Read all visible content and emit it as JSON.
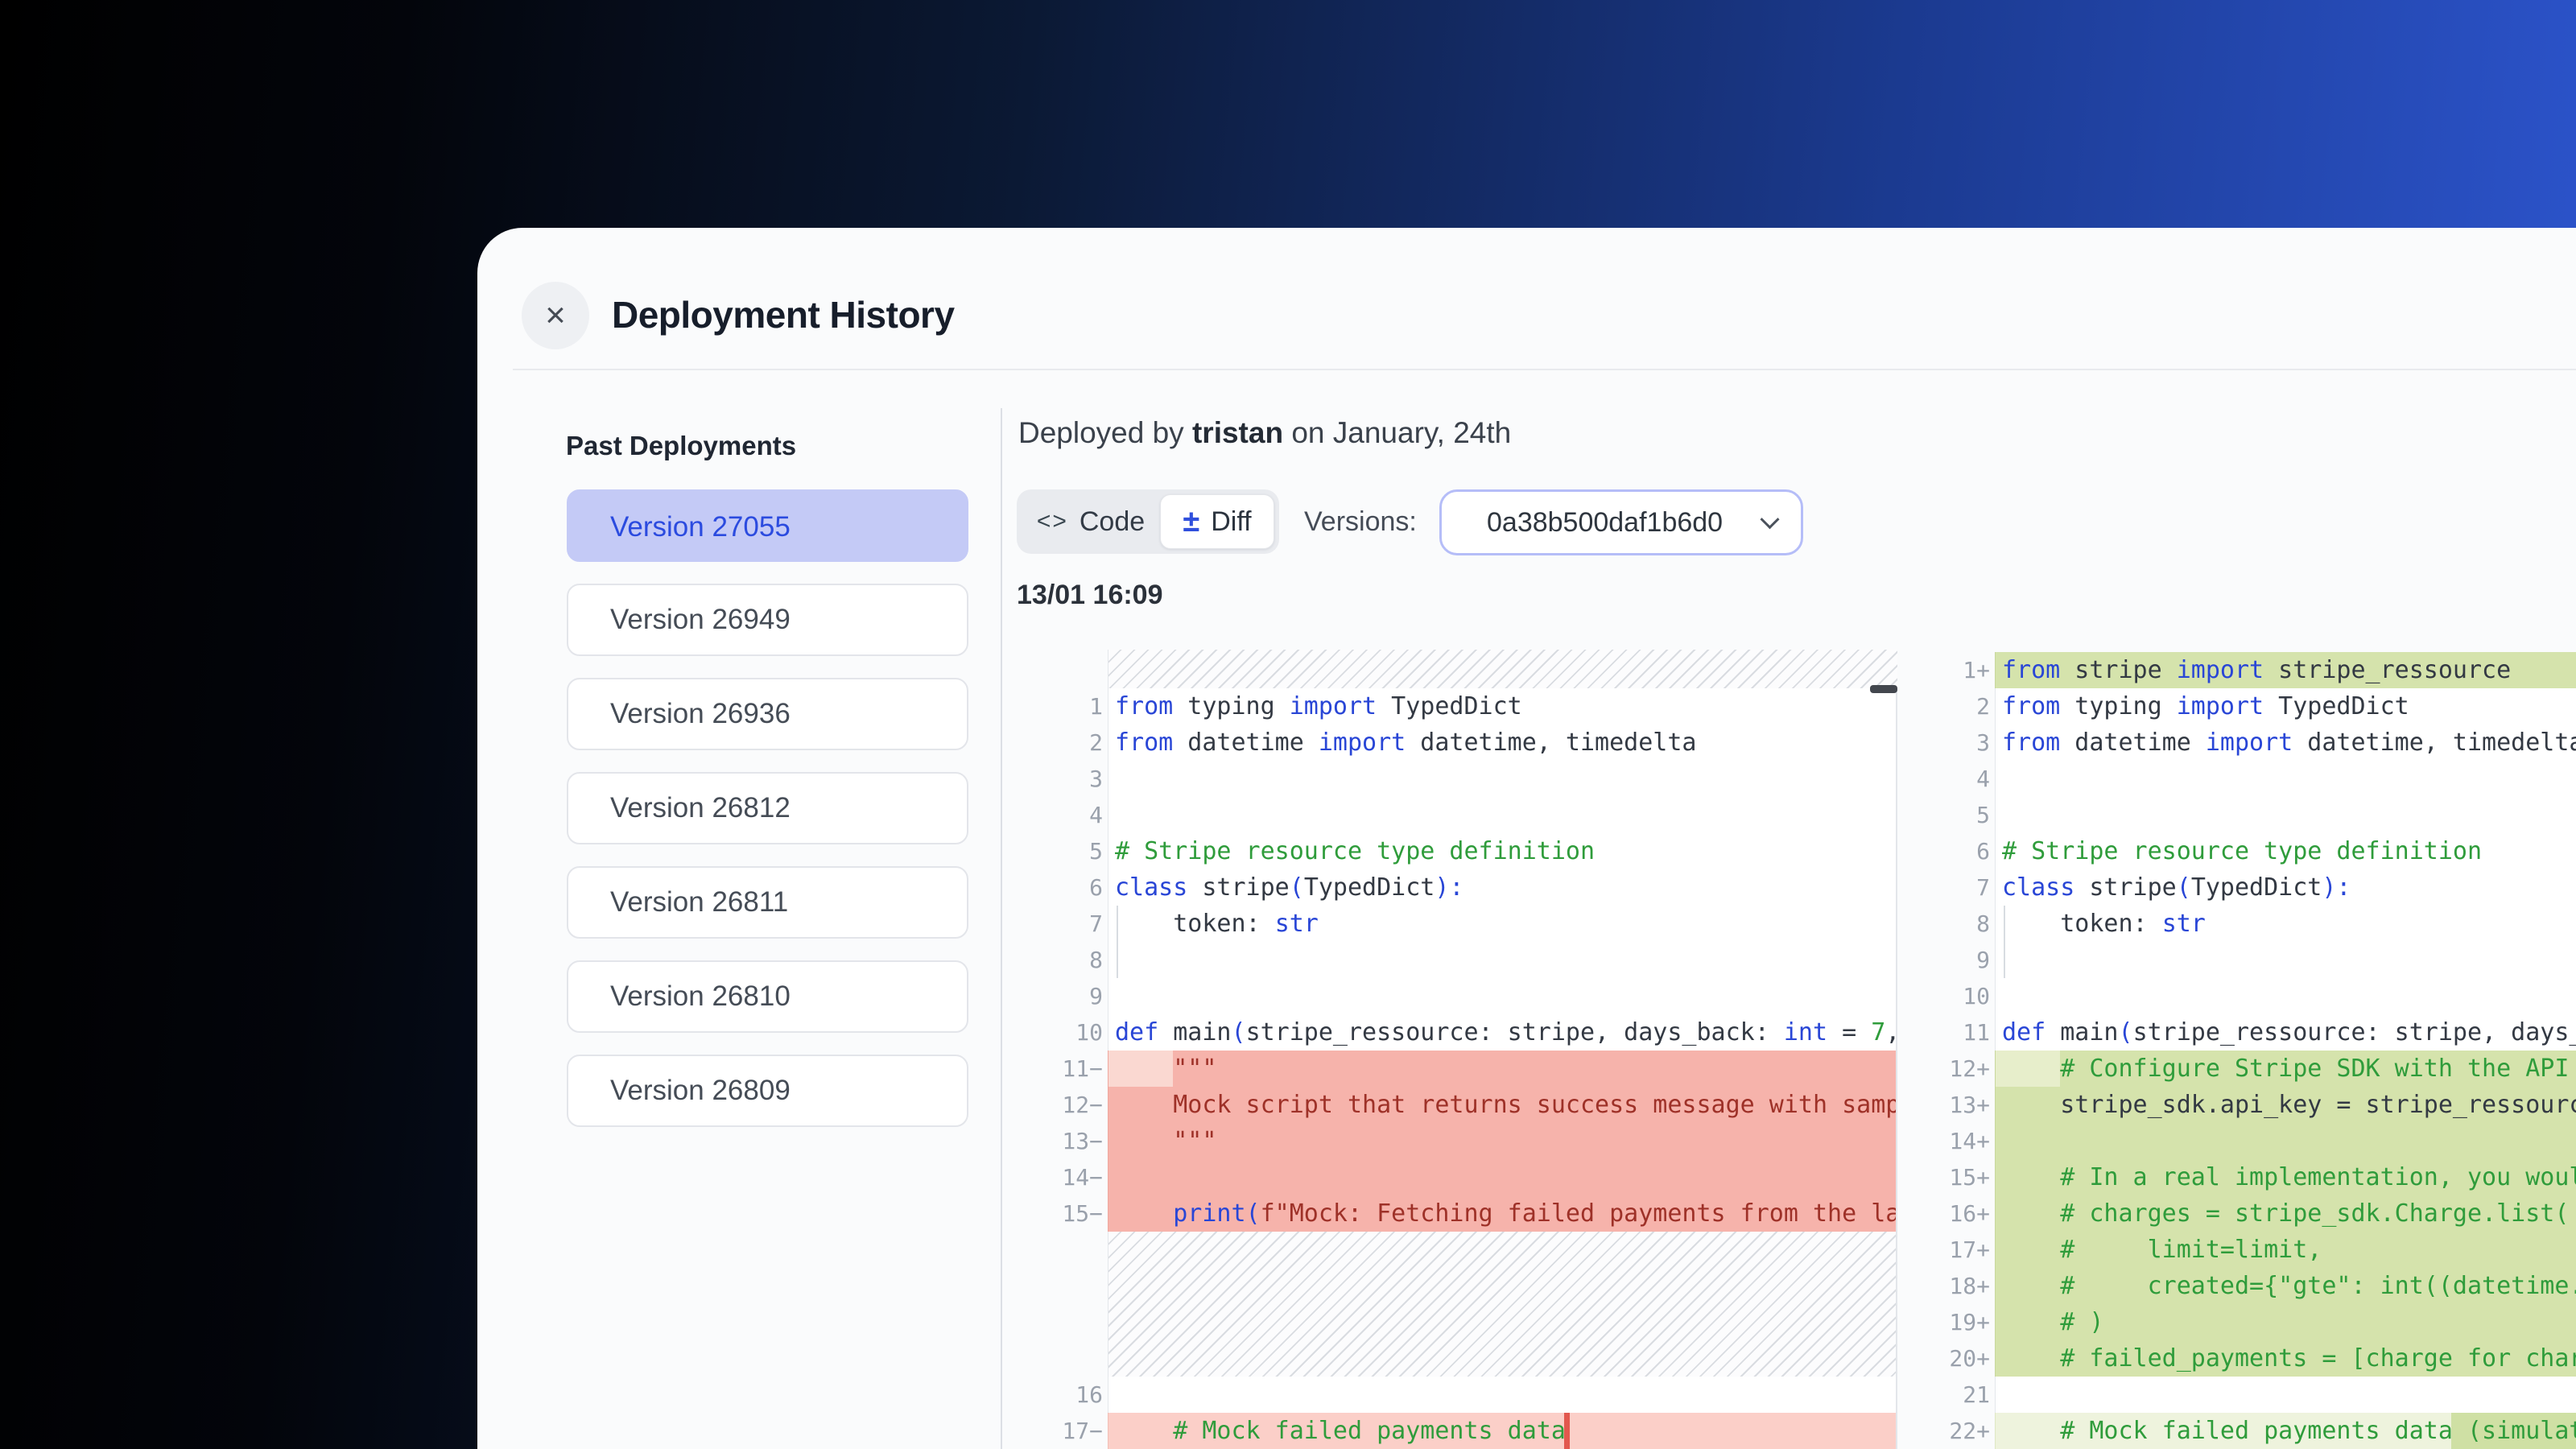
{
  "header": {
    "title": "Deployment History",
    "close_label": "×"
  },
  "sidebar": {
    "title": "Past Deployments",
    "items": [
      {
        "label": "Version 27055",
        "selected": true
      },
      {
        "label": "Version 26949",
        "selected": false
      },
      {
        "label": "Version 26936",
        "selected": false
      },
      {
        "label": "Version 26812",
        "selected": false
      },
      {
        "label": "Version 26811",
        "selected": false
      },
      {
        "label": "Version 26810",
        "selected": false
      },
      {
        "label": "Version 26809",
        "selected": false
      }
    ]
  },
  "main": {
    "deployed": {
      "prefix": "Deployed by ",
      "user": "tristan",
      "suffix": " on January, 24th"
    },
    "toolbar": {
      "code_icon": "<>",
      "code_label": "Code",
      "diff_icon": "±",
      "diff_label": "Diff",
      "versions_label": "Versions:",
      "version_value": "0a38b500daf1b6d0"
    },
    "timestamp": "13/01 16:09"
  },
  "diff": {
    "left_rows": [
      {
        "type": "hatch",
        "h": 48
      },
      {
        "ln": "1",
        "type": "ctx",
        "segs": [
          [
            "k",
            "from"
          ],
          [
            "p",
            " typing "
          ],
          [
            "k",
            "import"
          ],
          [
            "p",
            " TypedDict"
          ]
        ]
      },
      {
        "ln": "2",
        "type": "ctx",
        "segs": [
          [
            "k",
            "from"
          ],
          [
            "p",
            " datetime "
          ],
          [
            "k",
            "import"
          ],
          [
            "p",
            " datetime, timedelta"
          ]
        ]
      },
      {
        "ln": "3",
        "type": "ctx",
        "segs": []
      },
      {
        "ln": "4",
        "type": "ctx",
        "segs": []
      },
      {
        "ln": "5",
        "type": "ctx",
        "segs": [
          [
            "c",
            "# Stripe resource type definition"
          ]
        ]
      },
      {
        "ln": "6",
        "type": "ctx",
        "segs": [
          [
            "k",
            "class"
          ],
          [
            "p",
            " stripe"
          ],
          [
            "k",
            "("
          ],
          [
            "p",
            "TypedDict"
          ],
          [
            "k",
            "):"
          ]
        ]
      },
      {
        "ln": "7",
        "type": "ctx",
        "guide": true,
        "segs": [
          [
            "p",
            "    token: "
          ],
          [
            "k",
            "str"
          ]
        ]
      },
      {
        "ln": "8",
        "type": "ctx",
        "guide": true,
        "segs": []
      },
      {
        "ln": "9",
        "type": "ctx",
        "segs": []
      },
      {
        "ln": "10",
        "type": "ctx",
        "segs": [
          [
            "k",
            "def"
          ],
          [
            "p",
            " main"
          ],
          [
            "k",
            "("
          ],
          [
            "p",
            "stripe_ressource: stripe, days_back: "
          ],
          [
            "k",
            "int"
          ],
          [
            "p",
            " = "
          ],
          [
            "n",
            "7"
          ],
          [
            "p",
            ","
          ]
        ]
      },
      {
        "ln": "11−",
        "type": "del",
        "lite": 80,
        "segs": [
          [
            "s",
            "    \"\"\""
          ]
        ]
      },
      {
        "ln": "12−",
        "type": "del",
        "segs": [
          [
            "s",
            "    Mock script that returns success message with samp"
          ]
        ]
      },
      {
        "ln": "13−",
        "type": "del",
        "segs": [
          [
            "s",
            "    \"\"\""
          ]
        ]
      },
      {
        "ln": "14−",
        "type": "del",
        "segs": []
      },
      {
        "ln": "15−",
        "type": "del",
        "segs": [
          [
            "p",
            "    "
          ],
          [
            "k",
            "print("
          ],
          [
            "s",
            "f\"Mock: Fetching failed payments from the la"
          ]
        ]
      },
      {
        "type": "hatch",
        "h": 180
      },
      {
        "ln": "16",
        "type": "ctx",
        "segs": []
      },
      {
        "ln": "17−",
        "type": "del-lite",
        "bar": 566,
        "segs": [
          [
            "p",
            "    "
          ],
          [
            "c",
            "# Mock failed payments data"
          ]
        ]
      }
    ],
    "right_rows": [
      {
        "ln": "1+",
        "type": "add",
        "segs": [
          [
            "k",
            "from"
          ],
          [
            "p",
            " stripe "
          ],
          [
            "k",
            "import"
          ],
          [
            "p",
            " stripe_ressource"
          ]
        ]
      },
      {
        "ln": "2",
        "type": "ctx",
        "segs": [
          [
            "k",
            "from"
          ],
          [
            "p",
            " typing "
          ],
          [
            "k",
            "import"
          ],
          [
            "p",
            " TypedDict"
          ]
        ]
      },
      {
        "ln": "3",
        "type": "ctx",
        "segs": [
          [
            "k",
            "from"
          ],
          [
            "p",
            " datetime "
          ],
          [
            "k",
            "import"
          ],
          [
            "p",
            " datetime, timedelta"
          ]
        ]
      },
      {
        "ln": "4",
        "type": "ctx",
        "segs": []
      },
      {
        "ln": "5",
        "type": "ctx",
        "segs": []
      },
      {
        "ln": "6",
        "type": "ctx",
        "segs": [
          [
            "c",
            "# Stripe resource type definition"
          ]
        ]
      },
      {
        "ln": "7",
        "type": "ctx",
        "segs": [
          [
            "k",
            "class"
          ],
          [
            "p",
            " stripe"
          ],
          [
            "k",
            "("
          ],
          [
            "p",
            "TypedDict"
          ],
          [
            "k",
            "):"
          ]
        ]
      },
      {
        "ln": "8",
        "type": "ctx",
        "guide": true,
        "segs": [
          [
            "p",
            "    token: "
          ],
          [
            "k",
            "str"
          ]
        ]
      },
      {
        "ln": "9",
        "type": "ctx",
        "guide": true,
        "segs": []
      },
      {
        "ln": "10",
        "type": "ctx",
        "segs": []
      },
      {
        "ln": "11",
        "type": "ctx",
        "segs": [
          [
            "k",
            "def"
          ],
          [
            "p",
            " main"
          ],
          [
            "k",
            "("
          ],
          [
            "p",
            "stripe_ressource: stripe, days_"
          ]
        ]
      },
      {
        "ln": "12+",
        "type": "add",
        "lite": 80,
        "segs": [
          [
            "c",
            "    # Configure Stripe SDK with the API"
          ]
        ]
      },
      {
        "ln": "13+",
        "type": "add",
        "segs": [
          [
            "p",
            "    stripe_sdk.api_key = stripe_ressourc"
          ]
        ]
      },
      {
        "ln": "14+",
        "type": "add",
        "segs": []
      },
      {
        "ln": "15+",
        "type": "add",
        "segs": [
          [
            "c",
            "    # In a real implementation, you woul"
          ]
        ]
      },
      {
        "ln": "16+",
        "type": "add",
        "segs": [
          [
            "c",
            "    # charges = stripe_sdk.Charge.list("
          ]
        ]
      },
      {
        "ln": "17+",
        "type": "add",
        "segs": [
          [
            "c",
            "    #     limit=limit,"
          ]
        ]
      },
      {
        "ln": "18+",
        "type": "add",
        "segs": [
          [
            "c",
            "    #     created={\"gte\": int((datetime."
          ]
        ]
      },
      {
        "ln": "19+",
        "type": "add",
        "segs": [
          [
            "c",
            "    # )"
          ]
        ]
      },
      {
        "ln": "20+",
        "type": "add",
        "segs": [
          [
            "c",
            "    # failed_payments = [charge for char"
          ]
        ]
      },
      {
        "ln": "21",
        "type": "ctx",
        "segs": []
      },
      {
        "ln": "22+",
        "type": "add-lite",
        "dark": 566,
        "segs": [
          [
            "c",
            "    # Mock failed payments data (simulat"
          ]
        ]
      }
    ]
  },
  "colors": {
    "accent_blue": "#2b4bdf",
    "selected_item_bg": "#c4caf6",
    "removed_bg": "#f6b3ab",
    "removed_light_bg": "#fbcfc8",
    "removed_word_bar": "#e2584e",
    "added_bg": "#d5e3ac",
    "added_light_bg": "#eef3dd",
    "added_word_bg": "#cfe0a4",
    "keyword": "#2946d6",
    "comment": "#2f9c3b",
    "string": "#9e3128",
    "gradient_left": "#000000",
    "gradient_right": "#2e57d3"
  }
}
